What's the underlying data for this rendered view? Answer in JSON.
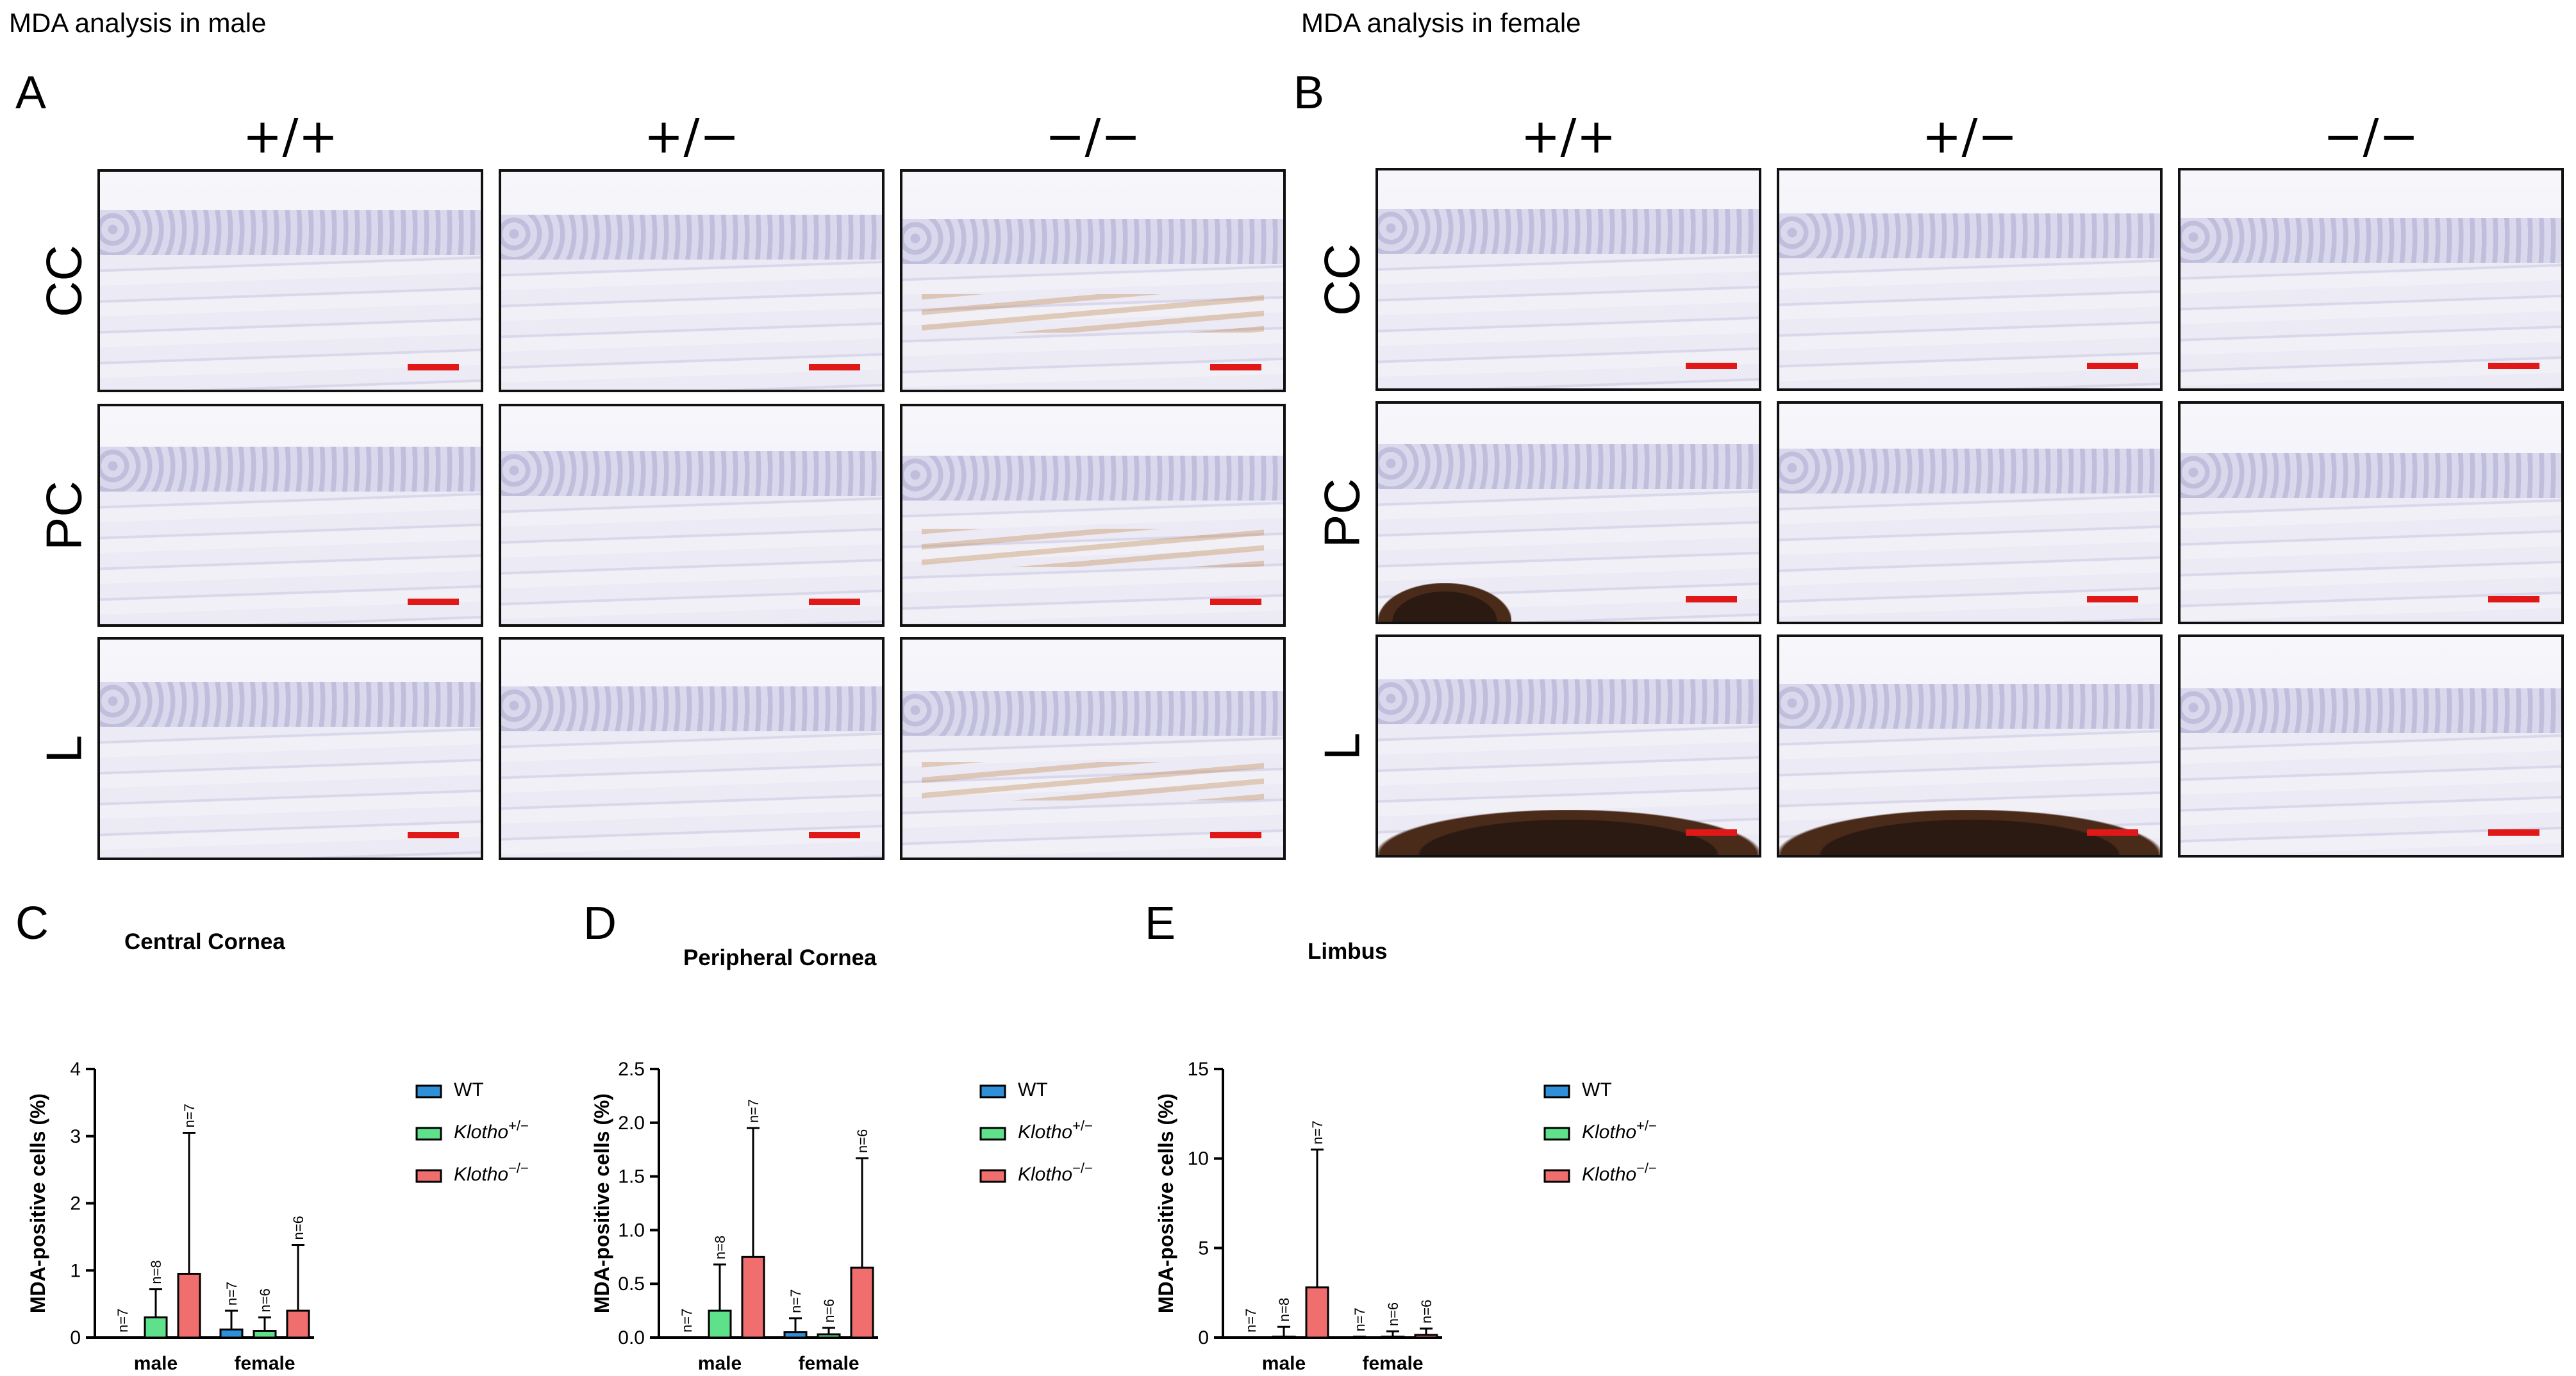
{
  "header": {
    "male_title": "MDA analysis in male",
    "female_title": "MDA analysis in female"
  },
  "panels": {
    "a": "A",
    "b": "B",
    "c": "C",
    "d": "D",
    "e": "E"
  },
  "micrographs": {
    "columns": [
      "+/+",
      "+/−",
      "−/−"
    ],
    "rows": [
      "CC",
      "PC",
      "L"
    ],
    "scale_bar_color": "#e01818"
  },
  "colors": {
    "wt": "#2f8fd8",
    "het": "#5fe08a",
    "ko": "#f06e6e",
    "axis": "#000000"
  },
  "chart_data": [
    {
      "type": "bar",
      "title": "Central Cornea",
      "ylabel": "MDA-positive cells (%)",
      "categories": [
        "male",
        "female"
      ],
      "ylim": [
        0,
        4
      ],
      "yticks": [
        "0",
        "1",
        "2",
        "3",
        "4"
      ],
      "series": [
        {
          "name": "WT",
          "values": [
            0.0,
            0.12
          ],
          "errors": [
            0.0,
            0.28
          ],
          "n": [
            "n=7",
            "n=7"
          ]
        },
        {
          "name": "Klotho+/−",
          "values": [
            0.3,
            0.1
          ],
          "errors": [
            0.42,
            0.2
          ],
          "n": [
            "n=8",
            "n=6"
          ]
        },
        {
          "name": "Klotho−/−",
          "values": [
            0.95,
            0.4
          ],
          "errors": [
            2.1,
            0.98
          ],
          "n": [
            "n=7",
            "n=6"
          ]
        }
      ],
      "legend": [
        "WT",
        "Klotho+/−",
        "Klotho−/−"
      ],
      "legend_placement": "right"
    },
    {
      "type": "bar",
      "title": "Peripheral Cornea",
      "ylabel": "MDA-positive cells (%)",
      "categories": [
        "male",
        "female"
      ],
      "ylim": [
        0,
        2.5
      ],
      "yticks": [
        "0.0",
        "0.5",
        "1.0",
        "1.5",
        "2.0",
        "2.5"
      ],
      "series": [
        {
          "name": "WT",
          "values": [
            0.0,
            0.05
          ],
          "errors": [
            0.0,
            0.13
          ],
          "n": [
            "n=7",
            "n=7"
          ]
        },
        {
          "name": "Klotho+/−",
          "values": [
            0.25,
            0.03
          ],
          "errors": [
            0.43,
            0.06
          ],
          "n": [
            "n=8",
            "n=6"
          ]
        },
        {
          "name": "Klotho−/−",
          "values": [
            0.75,
            0.65
          ],
          "errors": [
            1.2,
            1.02
          ],
          "n": [
            "n=7",
            "n=6"
          ]
        }
      ],
      "legend": [
        "WT",
        "Klotho+/−",
        "Klotho−/−"
      ],
      "legend_placement": "right"
    },
    {
      "type": "bar",
      "title": "Limbus",
      "ylabel": "MDA-positive cells (%)",
      "categories": [
        "male",
        "female"
      ],
      "ylim": [
        0,
        15
      ],
      "yticks": [
        "0",
        "5",
        "10",
        "15"
      ],
      "series": [
        {
          "name": "WT",
          "values": [
            0.0,
            0.0
          ],
          "errors": [
            0.0,
            0.05
          ],
          "n": [
            "n=7",
            "n=7"
          ]
        },
        {
          "name": "Klotho+/−",
          "values": [
            0.05,
            0.05
          ],
          "errors": [
            0.55,
            0.3
          ],
          "n": [
            "n=8",
            "n=6"
          ]
        },
        {
          "name": "Klotho−/−",
          "values": [
            2.8,
            0.15
          ],
          "errors": [
            7.7,
            0.35
          ],
          "n": [
            "n=7",
            "n=6"
          ]
        }
      ],
      "legend": [
        "WT",
        "Klotho+/−",
        "Klotho−/−"
      ],
      "legend_placement": "right"
    }
  ],
  "legend_labels": {
    "wt": "WT",
    "gene": "Klotho",
    "het_sup": "+/−",
    "ko_sup": "−/−"
  }
}
